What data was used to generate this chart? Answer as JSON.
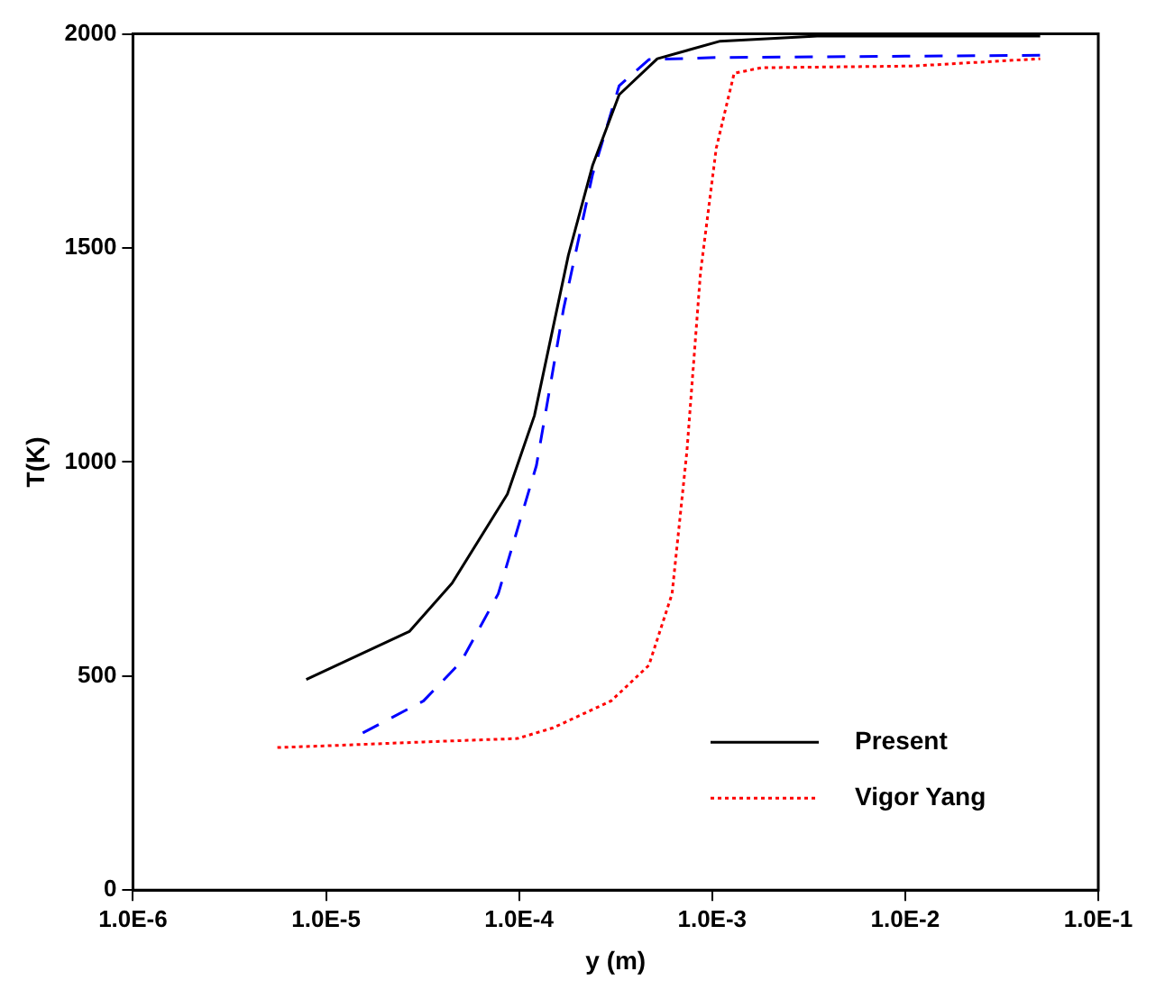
{
  "chart_data": {
    "type": "line",
    "xlabel": "y (m)",
    "ylabel": "T(K)",
    "log": "x",
    "xlim": [
      1e-06,
      0.1
    ],
    "xticks": [
      {
        "value": 1e-06,
        "label": "1.0E-6"
      },
      {
        "value": 1e-05,
        "label": "1.0E-5"
      },
      {
        "value": 0.0001,
        "label": "1.0E-4"
      },
      {
        "value": 0.001,
        "label": "1.0E-3"
      },
      {
        "value": 0.01,
        "label": "1.0E-2"
      },
      {
        "value": 0.1,
        "label": "1.0E-1"
      }
    ],
    "ylim": [
      0,
      2000
    ],
    "yticks": [
      0,
      500,
      1000,
      1500,
      2000
    ],
    "grid": false,
    "legend": "bottom right",
    "marker": "none",
    "series": [
      {
        "name": "Present",
        "color": "#000000",
        "line_style": "solid",
        "x": [
          7.9e-06,
          2.7e-05,
          4.5e-05,
          8.7e-05,
          0.00012,
          0.00018,
          0.00024,
          0.00033,
          0.00052,
          0.0011,
          0.0035,
          0.05
        ],
        "values": [
          492,
          604,
          717,
          925,
          1108,
          1483,
          1692,
          1858,
          1942,
          1983,
          1995,
          1995
        ]
      },
      {
        "color": "#0000ff",
        "line_style": "dashed",
        "x": [
          1.55e-05,
          3.2e-05,
          5e-05,
          7.8e-05,
          0.000123,
          0.00017,
          0.00024,
          0.00033,
          0.00047,
          0.0011,
          0.01,
          0.05
        ],
        "values": [
          367,
          442,
          533,
          692,
          992,
          1358,
          1671,
          1879,
          1940,
          1945,
          1948,
          1950
        ]
      },
      {
        "name": "Vigor Yang",
        "color": "#ff0000",
        "line_style": "dotted",
        "x": [
          5.6e-06,
          1e-05,
          3.2e-05,
          9.8e-05,
          0.00015,
          0.0003,
          0.00047,
          0.00062,
          0.00074,
          0.00087,
          0.00105,
          0.0013,
          0.0018,
          0.011,
          0.05
        ],
        "values": [
          333,
          337,
          346,
          354,
          379,
          442,
          525,
          692,
          1025,
          1442,
          1733,
          1908,
          1921,
          1925,
          1942
        ]
      }
    ]
  }
}
